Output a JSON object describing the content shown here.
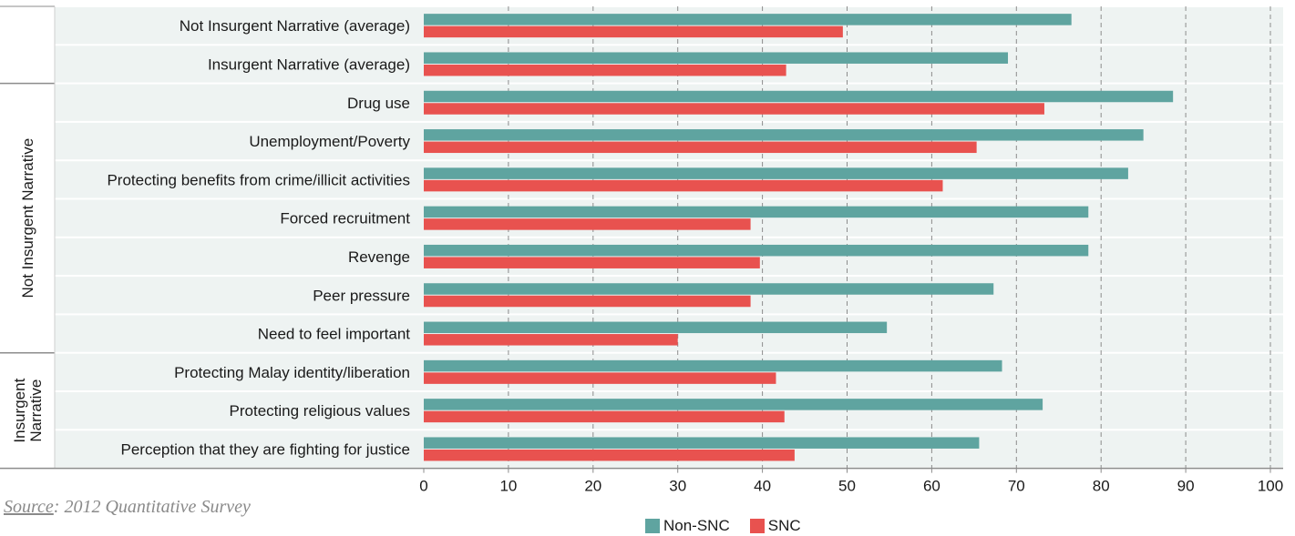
{
  "chart_data": {
    "type": "bar",
    "orientation": "horizontal",
    "categories": [
      "Not Insurgent Narrative (average)",
      "Insurgent Narrative (average)",
      "Drug use",
      "Unemployment/Poverty",
      "Protecting benefits from crime/illicit activities",
      "Forced recruitment",
      "Revenge",
      "Peer pressure",
      "Need to feel important",
      "Protecting Malay identity/liberation",
      "Protecting religious values",
      "Perception that they are fighting for justice"
    ],
    "groups": [
      {
        "label": "",
        "start": 0,
        "end": 1
      },
      {
        "label": "Not Insurgent Narrative",
        "start": 2,
        "end": 8
      },
      {
        "label": "Insurgent Narrative",
        "start": 9,
        "end": 11
      }
    ],
    "series": [
      {
        "name": "Non-SNC",
        "color": "#5fa4a0",
        "values": [
          76.5,
          69,
          88.5,
          85,
          83.2,
          78.5,
          78.5,
          67.3,
          54.7,
          68.3,
          73.1,
          65.6
        ]
      },
      {
        "name": "SNC",
        "color": "#e8524f",
        "values": [
          49.5,
          42.8,
          73.3,
          65.3,
          61.3,
          38.6,
          39.7,
          38.6,
          30,
          41.6,
          42.6,
          43.8
        ]
      }
    ],
    "x_ticks": [
      0,
      10,
      20,
      30,
      40,
      50,
      60,
      70,
      80,
      90,
      100
    ],
    "xlim": [
      0,
      100
    ],
    "grid": "vertical dashed",
    "legend_position": "bottom",
    "xlabel": "",
    "ylabel": ""
  },
  "source": {
    "label": "Source",
    "text": ": 2012 Quantitative Survey"
  }
}
